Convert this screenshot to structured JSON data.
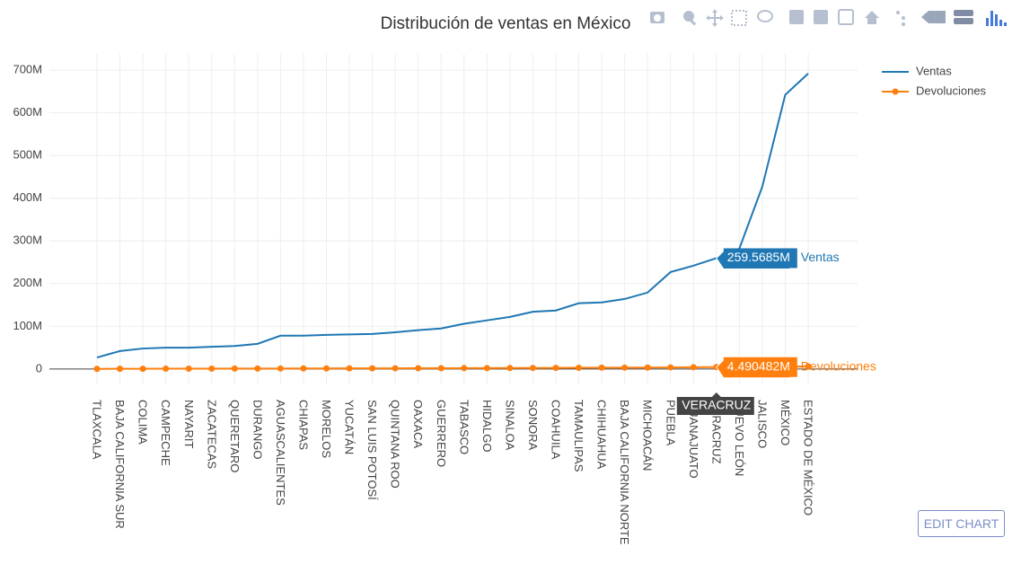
{
  "chart_data": {
    "type": "line",
    "title": "Distribución de ventas en México",
    "categories": [
      "TLAXCALA",
      "BAJA CALIFORNIA SUR",
      "COLIMA",
      "CAMPECHE",
      "NAYARIT",
      "ZACATECAS",
      "QUERETARO",
      "DURANGO",
      "AGUASCALIENTES",
      "CHIAPAS",
      "MORELOS",
      "YUCATÁN",
      "SAN LUIS POTOSÍ",
      "QUINTANA ROO",
      "OAXACA",
      "GUERRERO",
      "TABASCO",
      "HIDALGO",
      "SINALOA",
      "SONORA",
      "COAHUILA",
      "TAMAULIPAS",
      "CHIHUAHUA",
      "BAJA CALIFORNIA NORTE",
      "MICHOACÁN",
      "PUEBLA",
      "GUANAJUATO",
      "VERACRUZ",
      "NUEVO LEÓN",
      "JALISCO",
      "MÉXICO",
      "ESTADO DE MÉXICO"
    ],
    "series": [
      {
        "name": "Ventas",
        "color": "#1f77b4",
        "markers": false,
        "values": [
          27000000,
          42000000,
          48000000,
          50000000,
          50000000,
          52000000,
          54000000,
          59000000,
          78000000,
          78000000,
          80000000,
          81000000,
          82000000,
          86000000,
          91000000,
          95000000,
          106000000,
          114000000,
          122000000,
          134000000,
          137000000,
          154000000,
          156000000,
          164000000,
          179000000,
          227000000,
          242000000,
          259568500,
          282000000,
          427000000,
          642000000,
          692000000
        ]
      },
      {
        "name": "Devoluciones",
        "color": "#ff7f0e",
        "markers": true,
        "values": [
          300000,
          500000,
          600000,
          700000,
          800000,
          900000,
          1000000,
          1100000,
          1200000,
          1300000,
          1400000,
          1500000,
          1600000,
          1700000,
          1800000,
          1900000,
          2000000,
          2200000,
          2300000,
          2500000,
          2700000,
          2900000,
          3100000,
          3300000,
          3500000,
          3800000,
          4100000,
          4490482,
          4800000,
          5200000,
          5600000,
          6000000
        ]
      }
    ],
    "ylim": [
      -36000000,
      738000000
    ],
    "yticks": [
      0,
      {
        "value": 100000000,
        "label": "100M"
      },
      {
        "value": 200000000,
        "label": "200M"
      },
      {
        "value": 300000000,
        "label": "300M"
      },
      {
        "value": 400000000,
        "label": "400M"
      },
      {
        "value": 500000000,
        "label": "500M"
      },
      {
        "value": 600000000,
        "label": "600M"
      },
      {
        "value": 700000000,
        "label": "700M"
      }
    ],
    "grid": true,
    "legend": "right",
    "hover": {
      "category": "VERACRUZ",
      "series_labels": [
        "259.5685M",
        "4.490482M"
      ]
    }
  },
  "button": "EDIT CHART"
}
